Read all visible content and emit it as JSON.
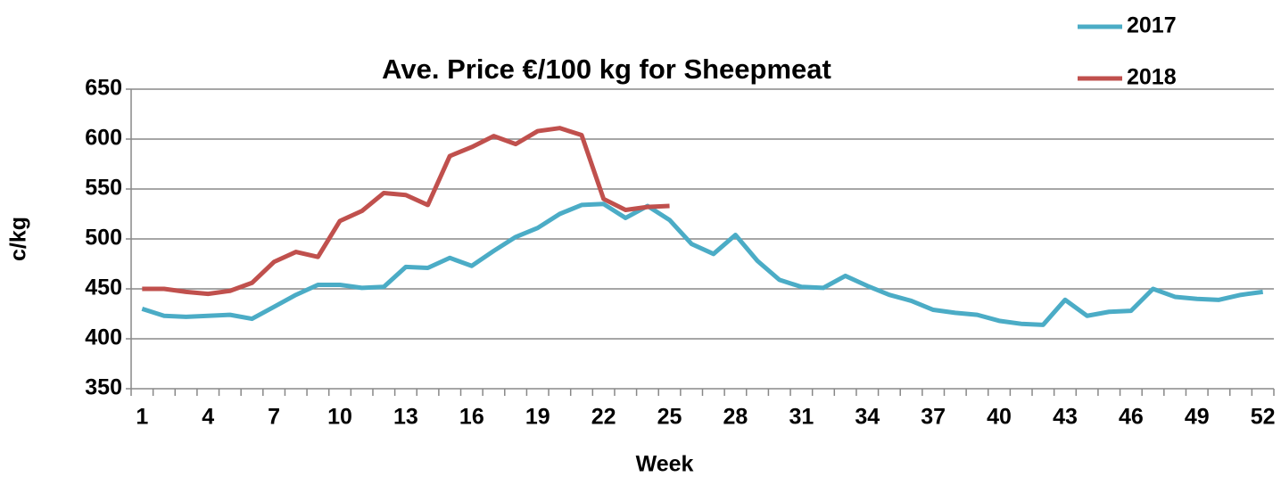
{
  "chart_data": {
    "type": "line",
    "title": "Ave. Price €/100 kg for Sheepmeat",
    "x_label": "Week",
    "y_label": "c/kg",
    "categories": [
      1,
      null,
      null,
      4,
      null,
      null,
      7,
      null,
      null,
      10,
      null,
      null,
      13,
      null,
      null,
      16,
      null,
      null,
      19,
      null,
      null,
      22,
      null,
      null,
      25,
      null,
      null,
      28,
      null,
      null,
      31,
      null,
      null,
      34,
      null,
      null,
      37,
      null,
      null,
      40,
      null,
      null,
      43,
      null,
      null,
      46,
      null,
      null,
      49,
      null,
      null,
      52
    ],
    "series": [
      {
        "name": "2017",
        "color": "#4bacc6",
        "values": [
          430,
          423,
          422,
          423,
          424,
          420,
          432,
          444,
          454,
          454,
          451,
          452,
          472,
          471,
          481,
          473,
          488,
          502,
          511,
          525,
          534,
          535,
          521,
          533,
          519,
          495,
          485,
          504,
          478,
          459,
          452,
          451,
          463,
          453,
          444,
          438,
          429,
          426,
          424,
          418,
          415,
          414,
          439,
          423,
          427,
          428,
          450,
          442,
          440,
          439,
          444,
          447
        ]
      },
      {
        "name": "2018",
        "color": "#c0504d",
        "values": [
          450,
          450,
          447,
          445,
          448,
          456,
          477,
          487,
          482,
          518,
          528,
          546,
          544,
          534,
          583,
          592,
          603,
          595,
          608,
          611,
          604,
          540,
          529,
          532,
          533,
          null,
          null,
          null,
          null,
          null,
          null,
          null,
          null,
          null,
          null,
          null,
          null,
          null,
          null,
          null,
          null,
          null,
          null,
          null,
          null,
          null,
          null,
          null,
          null,
          null,
          null,
          null
        ]
      }
    ],
    "ylim": [
      350,
      650
    ],
    "yticks": [
      350,
      400,
      450,
      500,
      550,
      600,
      650
    ],
    "grid": true,
    "legend": "top-right"
  }
}
